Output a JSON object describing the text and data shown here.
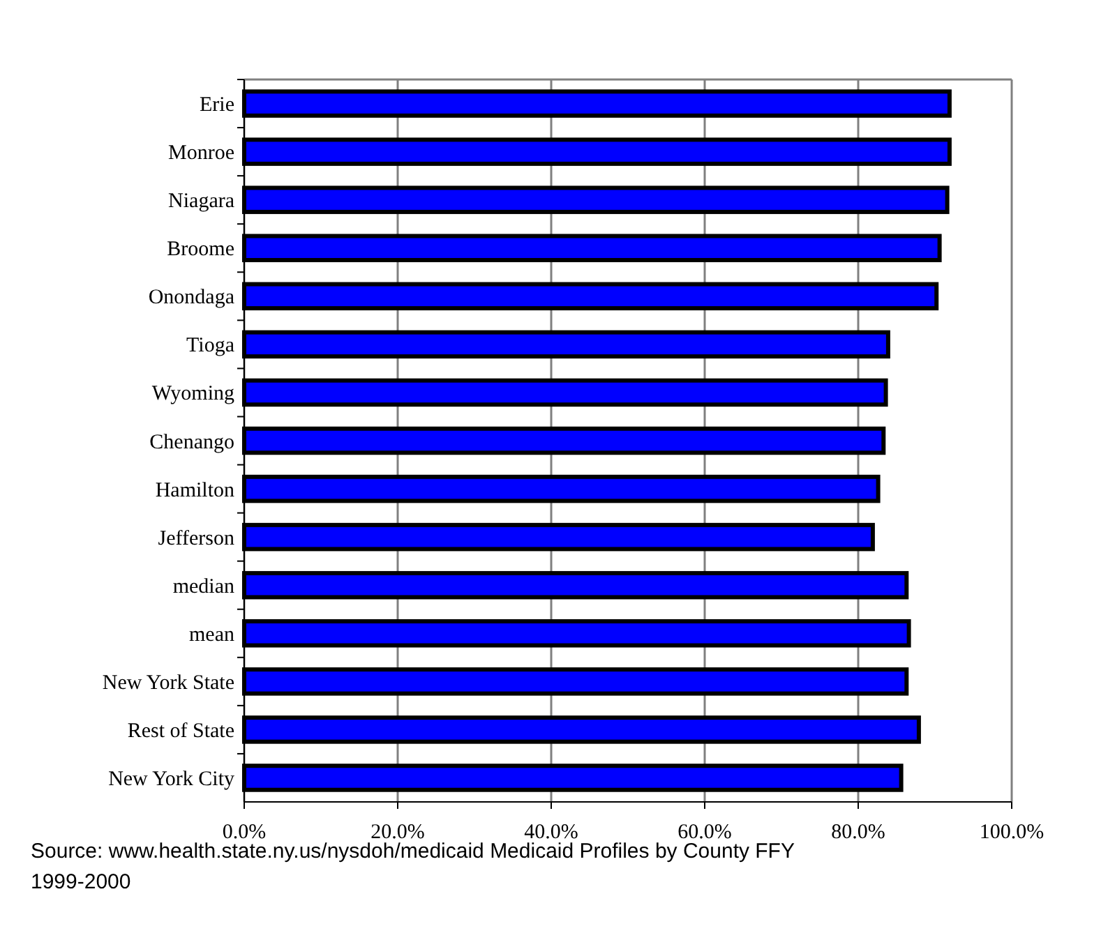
{
  "chart_data": {
    "type": "bar",
    "orientation": "horizontal",
    "categories": [
      "Erie",
      "Monroe",
      "Niagara",
      "Broome",
      "Onondaga",
      "Tioga",
      "Wyoming",
      "Chenango",
      "Hamilton",
      "Jefferson",
      "median",
      "mean",
      "New York State",
      "Rest of State",
      "New York City"
    ],
    "values": [
      91.9,
      91.9,
      91.6,
      90.6,
      90.2,
      83.9,
      83.6,
      83.3,
      82.6,
      81.9,
      86.3,
      86.6,
      86.3,
      87.9,
      85.6
    ],
    "color": "#0000ff",
    "xlim": [
      0,
      100
    ],
    "xticks": [
      {
        "value": 0,
        "label": "0.0%"
      },
      {
        "value": 20,
        "label": "20.0%"
      },
      {
        "value": 40,
        "label": "40.0%"
      },
      {
        "value": 60,
        "label": "60.0%"
      },
      {
        "value": 80,
        "label": "80.0%"
      },
      {
        "value": 100,
        "label": "100.0%"
      }
    ],
    "grid": "x",
    "annotations": [
      "Source: www.health.state.ny.us/nysdoh/medicaid   Medicaid Profiles by County FFY 1999-2000"
    ]
  }
}
